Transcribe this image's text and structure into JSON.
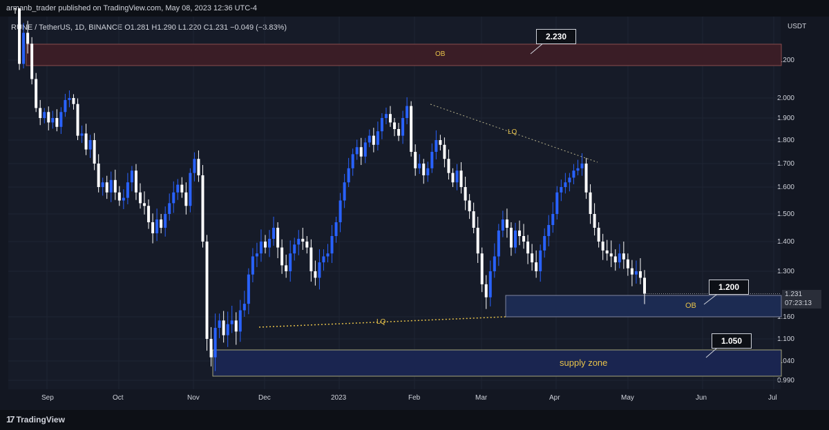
{
  "header": {
    "text": "armanb_trader published on TradingView.com, May 08, 2023 12:36 UTC-4"
  },
  "symbol_line": "RUNE / TetherUS, 1D, BINANCE  O1.281  H1.290  L1.220  C1.231  −0.049 (−3.83%)",
  "footer": {
    "brand": "TradingView",
    "brand_icon": "17"
  },
  "chart_data": {
    "type": "candlestick",
    "title": "RUNE / TetherUS, 1D, BINANCE",
    "ohlc": {
      "open": 1.281,
      "high": 1.29,
      "low": 1.22,
      "close": 1.231,
      "change": "−0.049 (−3.83%)"
    },
    "yaxis": {
      "unit": "USDT",
      "ticks": [
        "2.200",
        "2.000",
        "1.900",
        "1.800",
        "1.700",
        "1.600",
        "1.500",
        "1.400",
        "1.300",
        "1.160",
        "1.100",
        "1.040",
        "0.990"
      ]
    },
    "xaxis": {
      "ticks": [
        "Sep",
        "Oct",
        "Nov",
        "Dec",
        "2023",
        "Feb",
        "Mar",
        "Apr",
        "May",
        "Jun",
        "Jul"
      ]
    },
    "current_price": {
      "value": "1.231",
      "countdown": "07:23:13"
    },
    "series": [
      {
        "values": [
          2.39,
          2.18,
          2.3,
          2.26,
          2.1,
          1.95,
          1.9,
          1.93,
          1.88,
          1.9,
          1.86,
          1.93,
          1.99,
          2.0,
          1.97,
          1.82,
          1.83,
          1.76,
          1.8,
          1.7,
          1.6,
          1.62,
          1.58,
          1.63,
          1.58,
          1.55,
          1.56,
          1.62,
          1.67,
          1.58,
          1.54,
          1.53,
          1.47,
          1.43,
          1.48,
          1.45,
          1.5,
          1.54,
          1.58,
          1.61,
          1.58,
          1.53,
          1.66,
          1.72,
          1.65,
          1.4,
          1.1,
          1.05,
          1.13,
          1.15,
          1.11,
          1.14,
          1.15,
          1.12,
          1.18,
          1.2,
          1.29,
          1.35,
          1.36,
          1.4,
          1.38,
          1.41,
          1.45,
          1.38,
          1.32,
          1.3,
          1.36,
          1.39,
          1.41,
          1.4,
          1.38,
          1.3,
          1.28,
          1.33,
          1.35,
          1.36,
          1.42,
          1.47,
          1.55,
          1.62,
          1.68,
          1.74,
          1.77,
          1.73,
          1.79,
          1.82,
          1.78,
          1.84,
          1.9,
          1.92,
          1.88,
          1.85,
          1.82,
          1.9,
          1.96,
          1.75,
          1.68,
          1.7,
          1.65,
          1.68,
          1.75,
          1.8,
          1.78,
          1.72,
          1.66,
          1.62,
          1.67,
          1.6,
          1.55,
          1.51,
          1.45,
          1.36,
          1.26,
          1.22,
          1.3,
          1.35,
          1.44,
          1.48,
          1.45,
          1.38,
          1.44,
          1.42,
          1.4,
          1.36,
          1.33,
          1.3,
          1.37,
          1.42,
          1.46,
          1.5,
          1.58,
          1.6,
          1.62,
          1.64,
          1.67,
          1.68,
          1.7,
          1.58,
          1.5,
          1.45,
          1.4,
          1.37,
          1.36,
          1.35,
          1.33,
          1.36,
          1.34,
          1.31,
          1.29,
          1.3,
          1.28,
          1.231
        ]
      }
    ],
    "annotations": [
      {
        "kind": "zone",
        "label": "OB",
        "price_range": [
          2.18,
          2.26
        ]
      },
      {
        "kind": "zone",
        "label": "OB",
        "price_range": [
          1.16,
          1.22
        ]
      },
      {
        "kind": "zone",
        "label": "supply zone",
        "price_range": [
          0.995,
          1.07
        ]
      },
      {
        "kind": "trendline",
        "label": "LQ",
        "from": 1.97,
        "to": 1.71
      },
      {
        "kind": "trendline",
        "label": "LQ",
        "from": 1.13,
        "to": 1.16
      },
      {
        "kind": "callout",
        "label": "2.230"
      },
      {
        "kind": "callout",
        "label": "1.200"
      },
      {
        "kind": "callout",
        "label": "1.050"
      }
    ],
    "colors": {
      "up": "#2962ff",
      "down": "#ffffff",
      "ob_top": "#3a1d26",
      "ob_bottom": "#1c2b52",
      "supply": "#1a2550",
      "label": "#e8c34a"
    }
  }
}
